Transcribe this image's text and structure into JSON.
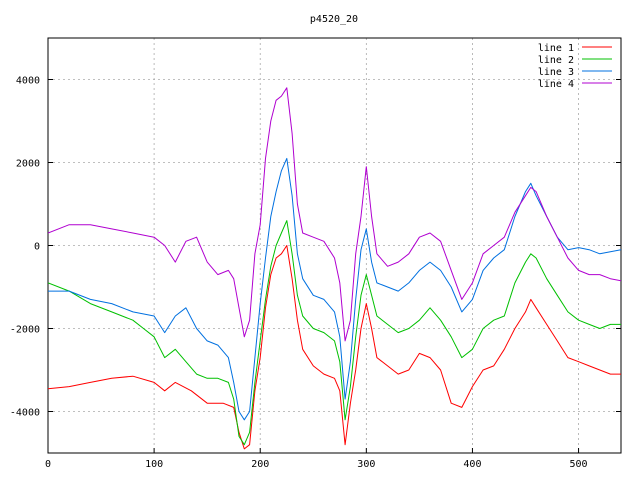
{
  "chart_data": {
    "type": "line",
    "title": "p4520_20",
    "xlabel": "",
    "ylabel": "",
    "xlim": [
      0,
      540
    ],
    "ylim": [
      -5000,
      5000
    ],
    "xticks": [
      0,
      100,
      200,
      300,
      400,
      500
    ],
    "yticks": [
      -4000,
      -2000,
      0,
      2000,
      4000
    ],
    "grid": true,
    "legend_position": "top-right",
    "series": [
      {
        "name": "line 1",
        "color": "#ff0000",
        "points": [
          [
            0,
            -3450
          ],
          [
            20,
            -3400
          ],
          [
            40,
            -3300
          ],
          [
            60,
            -3200
          ],
          [
            80,
            -3150
          ],
          [
            100,
            -3300
          ],
          [
            110,
            -3500
          ],
          [
            120,
            -3300
          ],
          [
            135,
            -3500
          ],
          [
            150,
            -3800
          ],
          [
            165,
            -3800
          ],
          [
            175,
            -3900
          ],
          [
            180,
            -4500
          ],
          [
            185,
            -4900
          ],
          [
            190,
            -4800
          ],
          [
            195,
            -3500
          ],
          [
            200,
            -2700
          ],
          [
            205,
            -1500
          ],
          [
            210,
            -700
          ],
          [
            215,
            -300
          ],
          [
            220,
            -200
          ],
          [
            225,
            0
          ],
          [
            230,
            -800
          ],
          [
            235,
            -1800
          ],
          [
            240,
            -2500
          ],
          [
            250,
            -2900
          ],
          [
            260,
            -3100
          ],
          [
            270,
            -3200
          ],
          [
            275,
            -3500
          ],
          [
            280,
            -4800
          ],
          [
            285,
            -3800
          ],
          [
            290,
            -3000
          ],
          [
            295,
            -2000
          ],
          [
            300,
            -1400
          ],
          [
            305,
            -2000
          ],
          [
            310,
            -2700
          ],
          [
            320,
            -2900
          ],
          [
            330,
            -3100
          ],
          [
            340,
            -3000
          ],
          [
            350,
            -2600
          ],
          [
            360,
            -2700
          ],
          [
            370,
            -3000
          ],
          [
            380,
            -3800
          ],
          [
            390,
            -3900
          ],
          [
            400,
            -3400
          ],
          [
            410,
            -3000
          ],
          [
            420,
            -2900
          ],
          [
            430,
            -2500
          ],
          [
            440,
            -2000
          ],
          [
            450,
            -1600
          ],
          [
            455,
            -1300
          ],
          [
            460,
            -1500
          ],
          [
            470,
            -1900
          ],
          [
            480,
            -2300
          ],
          [
            490,
            -2700
          ],
          [
            500,
            -2800
          ],
          [
            510,
            -2900
          ],
          [
            520,
            -3000
          ],
          [
            530,
            -3100
          ],
          [
            540,
            -3100
          ]
        ]
      },
      {
        "name": "line 2",
        "color": "#00c000",
        "points": [
          [
            0,
            -900
          ],
          [
            20,
            -1100
          ],
          [
            40,
            -1400
          ],
          [
            60,
            -1600
          ],
          [
            80,
            -1800
          ],
          [
            90,
            -2000
          ],
          [
            100,
            -2200
          ],
          [
            110,
            -2700
          ],
          [
            120,
            -2500
          ],
          [
            130,
            -2800
          ],
          [
            140,
            -3100
          ],
          [
            150,
            -3200
          ],
          [
            160,
            -3200
          ],
          [
            170,
            -3300
          ],
          [
            175,
            -3700
          ],
          [
            180,
            -4600
          ],
          [
            185,
            -4800
          ],
          [
            190,
            -4500
          ],
          [
            195,
            -3300
          ],
          [
            200,
            -2300
          ],
          [
            205,
            -1300
          ],
          [
            210,
            -500
          ],
          [
            215,
            0
          ],
          [
            220,
            300
          ],
          [
            225,
            600
          ],
          [
            230,
            -200
          ],
          [
            235,
            -1200
          ],
          [
            240,
            -1700
          ],
          [
            250,
            -2000
          ],
          [
            260,
            -2100
          ],
          [
            270,
            -2300
          ],
          [
            275,
            -2800
          ],
          [
            280,
            -4200
          ],
          [
            285,
            -3400
          ],
          [
            290,
            -2200
          ],
          [
            295,
            -1200
          ],
          [
            300,
            -700
          ],
          [
            305,
            -1200
          ],
          [
            310,
            -1700
          ],
          [
            320,
            -1900
          ],
          [
            330,
            -2100
          ],
          [
            340,
            -2000
          ],
          [
            350,
            -1800
          ],
          [
            360,
            -1500
          ],
          [
            370,
            -1800
          ],
          [
            380,
            -2200
          ],
          [
            390,
            -2700
          ],
          [
            400,
            -2500
          ],
          [
            410,
            -2000
          ],
          [
            420,
            -1800
          ],
          [
            430,
            -1700
          ],
          [
            440,
            -900
          ],
          [
            450,
            -400
          ],
          [
            455,
            -200
          ],
          [
            460,
            -300
          ],
          [
            470,
            -800
          ],
          [
            480,
            -1200
          ],
          [
            490,
            -1600
          ],
          [
            500,
            -1800
          ],
          [
            510,
            -1900
          ],
          [
            520,
            -2000
          ],
          [
            530,
            -1900
          ],
          [
            540,
            -1900
          ]
        ]
      },
      {
        "name": "line 3",
        "color": "#0070e0",
        "points": [
          [
            0,
            -1100
          ],
          [
            20,
            -1100
          ],
          [
            40,
            -1300
          ],
          [
            60,
            -1400
          ],
          [
            80,
            -1600
          ],
          [
            100,
            -1700
          ],
          [
            110,
            -2100
          ],
          [
            120,
            -1700
          ],
          [
            130,
            -1500
          ],
          [
            140,
            -2000
          ],
          [
            150,
            -2300
          ],
          [
            160,
            -2400
          ],
          [
            170,
            -2700
          ],
          [
            175,
            -3300
          ],
          [
            180,
            -4000
          ],
          [
            185,
            -4200
          ],
          [
            190,
            -4000
          ],
          [
            195,
            -2700
          ],
          [
            200,
            -1400
          ],
          [
            205,
            -300
          ],
          [
            210,
            700
          ],
          [
            215,
            1300
          ],
          [
            220,
            1800
          ],
          [
            225,
            2100
          ],
          [
            230,
            1200
          ],
          [
            235,
            -200
          ],
          [
            240,
            -800
          ],
          [
            250,
            -1200
          ],
          [
            260,
            -1300
          ],
          [
            270,
            -1600
          ],
          [
            275,
            -2200
          ],
          [
            280,
            -3700
          ],
          [
            285,
            -2800
          ],
          [
            290,
            -1300
          ],
          [
            295,
            -100
          ],
          [
            300,
            400
          ],
          [
            305,
            -400
          ],
          [
            310,
            -900
          ],
          [
            320,
            -1000
          ],
          [
            330,
            -1100
          ],
          [
            340,
            -900
          ],
          [
            350,
            -600
          ],
          [
            360,
            -400
          ],
          [
            370,
            -600
          ],
          [
            380,
            -1000
          ],
          [
            390,
            -1600
          ],
          [
            400,
            -1300
          ],
          [
            410,
            -600
          ],
          [
            420,
            -300
          ],
          [
            430,
            -100
          ],
          [
            440,
            700
          ],
          [
            450,
            1300
          ],
          [
            455,
            1500
          ],
          [
            460,
            1200
          ],
          [
            470,
            700
          ],
          [
            480,
            200
          ],
          [
            490,
            -100
          ],
          [
            500,
            -50
          ],
          [
            510,
            -100
          ],
          [
            520,
            -200
          ],
          [
            530,
            -150
          ],
          [
            540,
            -100
          ]
        ]
      },
      {
        "name": "line 4",
        "color": "#b000d0",
        "points": [
          [
            0,
            300
          ],
          [
            20,
            500
          ],
          [
            40,
            500
          ],
          [
            60,
            400
          ],
          [
            80,
            300
          ],
          [
            100,
            200
          ],
          [
            110,
            0
          ],
          [
            120,
            -400
          ],
          [
            130,
            100
          ],
          [
            140,
            200
          ],
          [
            150,
            -400
          ],
          [
            160,
            -700
          ],
          [
            170,
            -600
          ],
          [
            175,
            -800
          ],
          [
            180,
            -1500
          ],
          [
            185,
            -2200
          ],
          [
            190,
            -1800
          ],
          [
            195,
            -200
          ],
          [
            200,
            500
          ],
          [
            205,
            2100
          ],
          [
            210,
            3000
          ],
          [
            215,
            3500
          ],
          [
            220,
            3600
          ],
          [
            225,
            3800
          ],
          [
            230,
            2700
          ],
          [
            235,
            1000
          ],
          [
            240,
            300
          ],
          [
            250,
            200
          ],
          [
            260,
            100
          ],
          [
            270,
            -300
          ],
          [
            275,
            -900
          ],
          [
            280,
            -2300
          ],
          [
            285,
            -1800
          ],
          [
            290,
            -200
          ],
          [
            295,
            700
          ],
          [
            300,
            1900
          ],
          [
            305,
            700
          ],
          [
            310,
            -200
          ],
          [
            320,
            -500
          ],
          [
            330,
            -400
          ],
          [
            340,
            -200
          ],
          [
            350,
            200
          ],
          [
            360,
            300
          ],
          [
            370,
            100
          ],
          [
            380,
            -600
          ],
          [
            390,
            -1300
          ],
          [
            400,
            -900
          ],
          [
            410,
            -200
          ],
          [
            420,
            0
          ],
          [
            430,
            200
          ],
          [
            440,
            800
          ],
          [
            450,
            1200
          ],
          [
            455,
            1400
          ],
          [
            460,
            1300
          ],
          [
            470,
            700
          ],
          [
            480,
            200
          ],
          [
            490,
            -300
          ],
          [
            500,
            -600
          ],
          [
            510,
            -700
          ],
          [
            520,
            -700
          ],
          [
            530,
            -800
          ],
          [
            540,
            -850
          ]
        ]
      }
    ]
  }
}
